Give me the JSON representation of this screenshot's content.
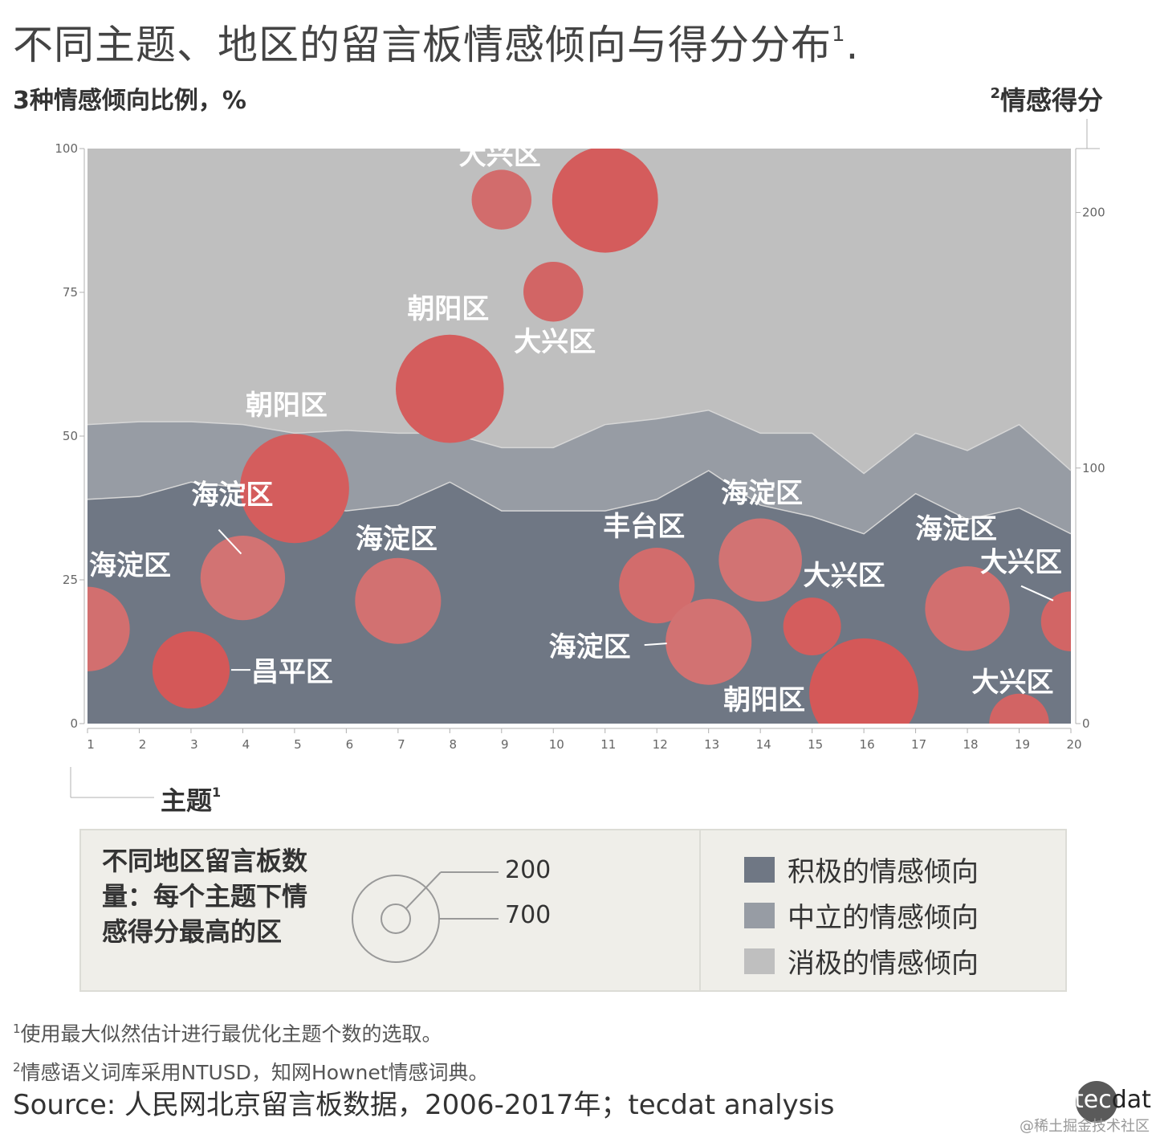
{
  "title": "不同主题、地区的留言板情感倾向与得分分布",
  "title_sup": "1",
  "title_tail": ".",
  "y_left_label": "3种情感倾向比例，%",
  "y_right_label": "情感得分",
  "y_right_sup": "2",
  "x_label": "主题",
  "x_label_sup": "1",
  "legend": {
    "bubble_title": "不同地区留言板数量：每个主题下情感得分最高的区",
    "size_small": "200",
    "size_large": "700",
    "items": [
      {
        "label": "积极的情感倾向",
        "color": "#6f7784"
      },
      {
        "label": "中立的情感倾向",
        "color": "#979ca4"
      },
      {
        "label": "消极的情感倾向",
        "color": "#bfbfbf"
      }
    ]
  },
  "footnote1_sup": "1",
  "footnote1": "使用最大似然估计进行最优化主题个数的选取。",
  "footnote2_sup": "2",
  "footnote2": "情感语义词库采用NTUSD，知网Hownet情感词典。",
  "source": "Source: 人民网北京留言板数据，2006-2017年；tecdat analysis",
  "brand_a": "tec",
  "brand_b": "dat",
  "watermark": "@稀土掘金技术社区",
  "chart_data": {
    "type": "area",
    "x": [
      1,
      2,
      3,
      4,
      5,
      6,
      7,
      8,
      9,
      10,
      11,
      12,
      13,
      14,
      15,
      16,
      17,
      18,
      19,
      20
    ],
    "y_left_ticks": [
      0,
      25,
      50,
      75,
      100
    ],
    "y_right_ticks": [
      0,
      100,
      200
    ],
    "ylim_left": [
      0,
      100
    ],
    "ylim_right": [
      0,
      225
    ],
    "series": [
      {
        "name": "积极的情感倾向",
        "color": "#6f7784",
        "values": [
          39,
          39.5,
          42,
          41,
          38,
          37,
          38,
          42,
          37,
          37,
          37,
          39,
          44,
          38,
          36,
          33,
          40,
          35.5,
          37.5,
          33
        ]
      },
      {
        "name": "中立的情感倾向",
        "color": "#979ca4",
        "values": [
          52,
          52.5,
          52.5,
          52,
          50.5,
          51,
          50.5,
          50.5,
          48,
          48,
          52,
          53,
          54.5,
          50.5,
          50.5,
          43.5,
          50.5,
          47.5,
          52,
          44
        ]
      },
      {
        "name": "消极的情感倾向",
        "color": "#bfbfbf",
        "values": [
          100,
          100,
          100,
          100,
          100,
          100,
          100,
          100,
          100,
          100,
          100,
          100,
          100,
          100,
          100,
          100,
          100,
          100,
          100,
          100
        ]
      }
    ],
    "bubbles": [
      {
        "topic": 1,
        "score": 37,
        "count": 300,
        "district": "海淀区",
        "color": "#d26f6f"
      },
      {
        "topic": 3,
        "score": 21,
        "count": 250,
        "district": "昌平区",
        "color": "#d45858"
      },
      {
        "topic": 4,
        "score": 57,
        "count": 300,
        "district": "海淀区",
        "color": "#d27373"
      },
      {
        "topic": 5,
        "score": 92,
        "count": 500,
        "district": "朝阳区",
        "color": "#d45d5d"
      },
      {
        "topic": 7,
        "score": 48,
        "count": 310,
        "district": "海淀区",
        "color": "#d27171"
      },
      {
        "topic": 8,
        "score": 131,
        "count": 490,
        "district": "朝阳区",
        "color": "#d45d5d"
      },
      {
        "topic": 9,
        "score": 205,
        "count": 150,
        "district": "大兴区",
        "color": "#d26c6c"
      },
      {
        "topic": 10,
        "score": 169,
        "count": 150,
        "district": "大兴区",
        "color": "#d26565"
      },
      {
        "topic": 11,
        "score": 205,
        "count": 470,
        "district": "朝阳区",
        "color": "#d45c5c"
      },
      {
        "topic": 12,
        "score": 54,
        "count": 240,
        "district": "丰台区",
        "color": "#d26c6c"
      },
      {
        "topic": 13,
        "score": 32,
        "count": 310,
        "district": "海淀区",
        "color": "#d27272"
      },
      {
        "topic": 14,
        "score": 64,
        "count": 290,
        "district": "海淀区",
        "color": "#d27373"
      },
      {
        "topic": 15,
        "score": 38,
        "count": 140,
        "district": "大兴区",
        "color": "#d45d5d"
      },
      {
        "topic": 16,
        "score": 12,
        "count": 500,
        "district": "朝阳区",
        "color": "#d45858"
      },
      {
        "topic": 18,
        "score": 45,
        "count": 300,
        "district": "海淀区",
        "color": "#d26f6f"
      },
      {
        "topic": 19,
        "score": 0,
        "count": 150,
        "district": "大兴区",
        "color": "#d26464"
      },
      {
        "topic": 20,
        "score": 40,
        "count": 150,
        "district": "大兴区",
        "color": "#d26565"
      }
    ]
  }
}
